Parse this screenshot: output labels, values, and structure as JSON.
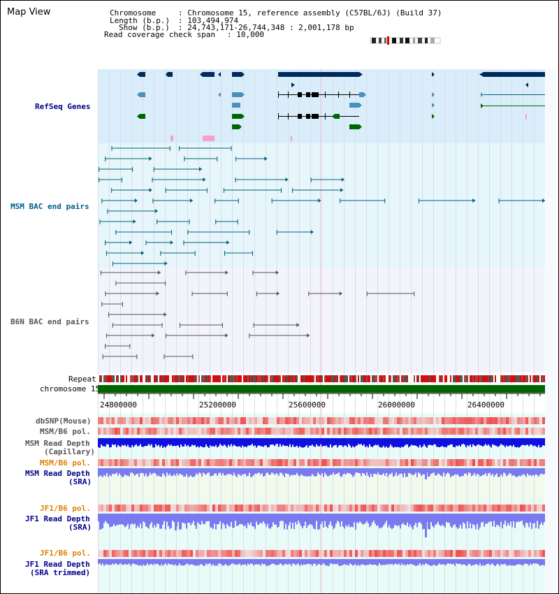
{
  "title": "Map View",
  "info": {
    "chromosome_key": "Chromosome",
    "chromosome_val": ": Chromosome 15, reference assembly (C57BL/6J) (Build 37)",
    "length_key": "Length (b.p.)",
    "length_val": ": 103,494,974",
    "show_key": "Show (b.p.)",
    "show_val": ": 24,743,171-26,744,348 : 2,001,178 bp",
    "coverage_key": "Read coverage check span",
    "coverage_val": ": 10,000"
  },
  "tracks": {
    "refseq": "RefSeq Genes",
    "msm_bac": "MSM BAC end pairs",
    "b6n_bac": "B6N BAC end pairs",
    "repeat": "Repeat",
    "chromosome": "chromosome 15",
    "dbsnp": "dbSNP(Mouse)",
    "msm_b6_pol_1": "MSM/B6 pol.",
    "msm_read_depth_cap_1": "MSM Read Depth",
    "msm_read_depth_cap_2": "(Capillary)",
    "msm_b6_pol_2": "MSM/B6 pol.",
    "msm_read_depth_sra_1": "MSM Read Depth",
    "msm_read_depth_sra_2": "(SRA)",
    "jf1_b6_pol_1": "JF1/B6 pol.",
    "jf1_read_depth_sra_1": "JF1 Read Depth",
    "jf1_read_depth_sra_2": "(SRA)",
    "jf1_b6_pol_2": "JF1/B6 pol.",
    "jf1_read_depth_trim_1": "JF1 Read Depth",
    "jf1_read_depth_trim_2": "(SRA trimmed)"
  },
  "axis_ticks": [
    "24800000",
    "25200000",
    "25600000",
    "26000000",
    "26400000"
  ],
  "colors": {
    "refseq_label": "#00008b",
    "msm_label": "#005a8c",
    "b6n_label": "#555555",
    "orange_label": "#e08000",
    "blue_label": "#00008b",
    "gene_dark": "#002b5c",
    "gene_mid": "#4a90b8",
    "gene_green": "#006400",
    "msm_pair": "#00607a",
    "b6n_pair": "#555555",
    "chrom_green": "#006400",
    "depth_blue": "#1010e0",
    "depth_light": "#7a7af0"
  }
}
